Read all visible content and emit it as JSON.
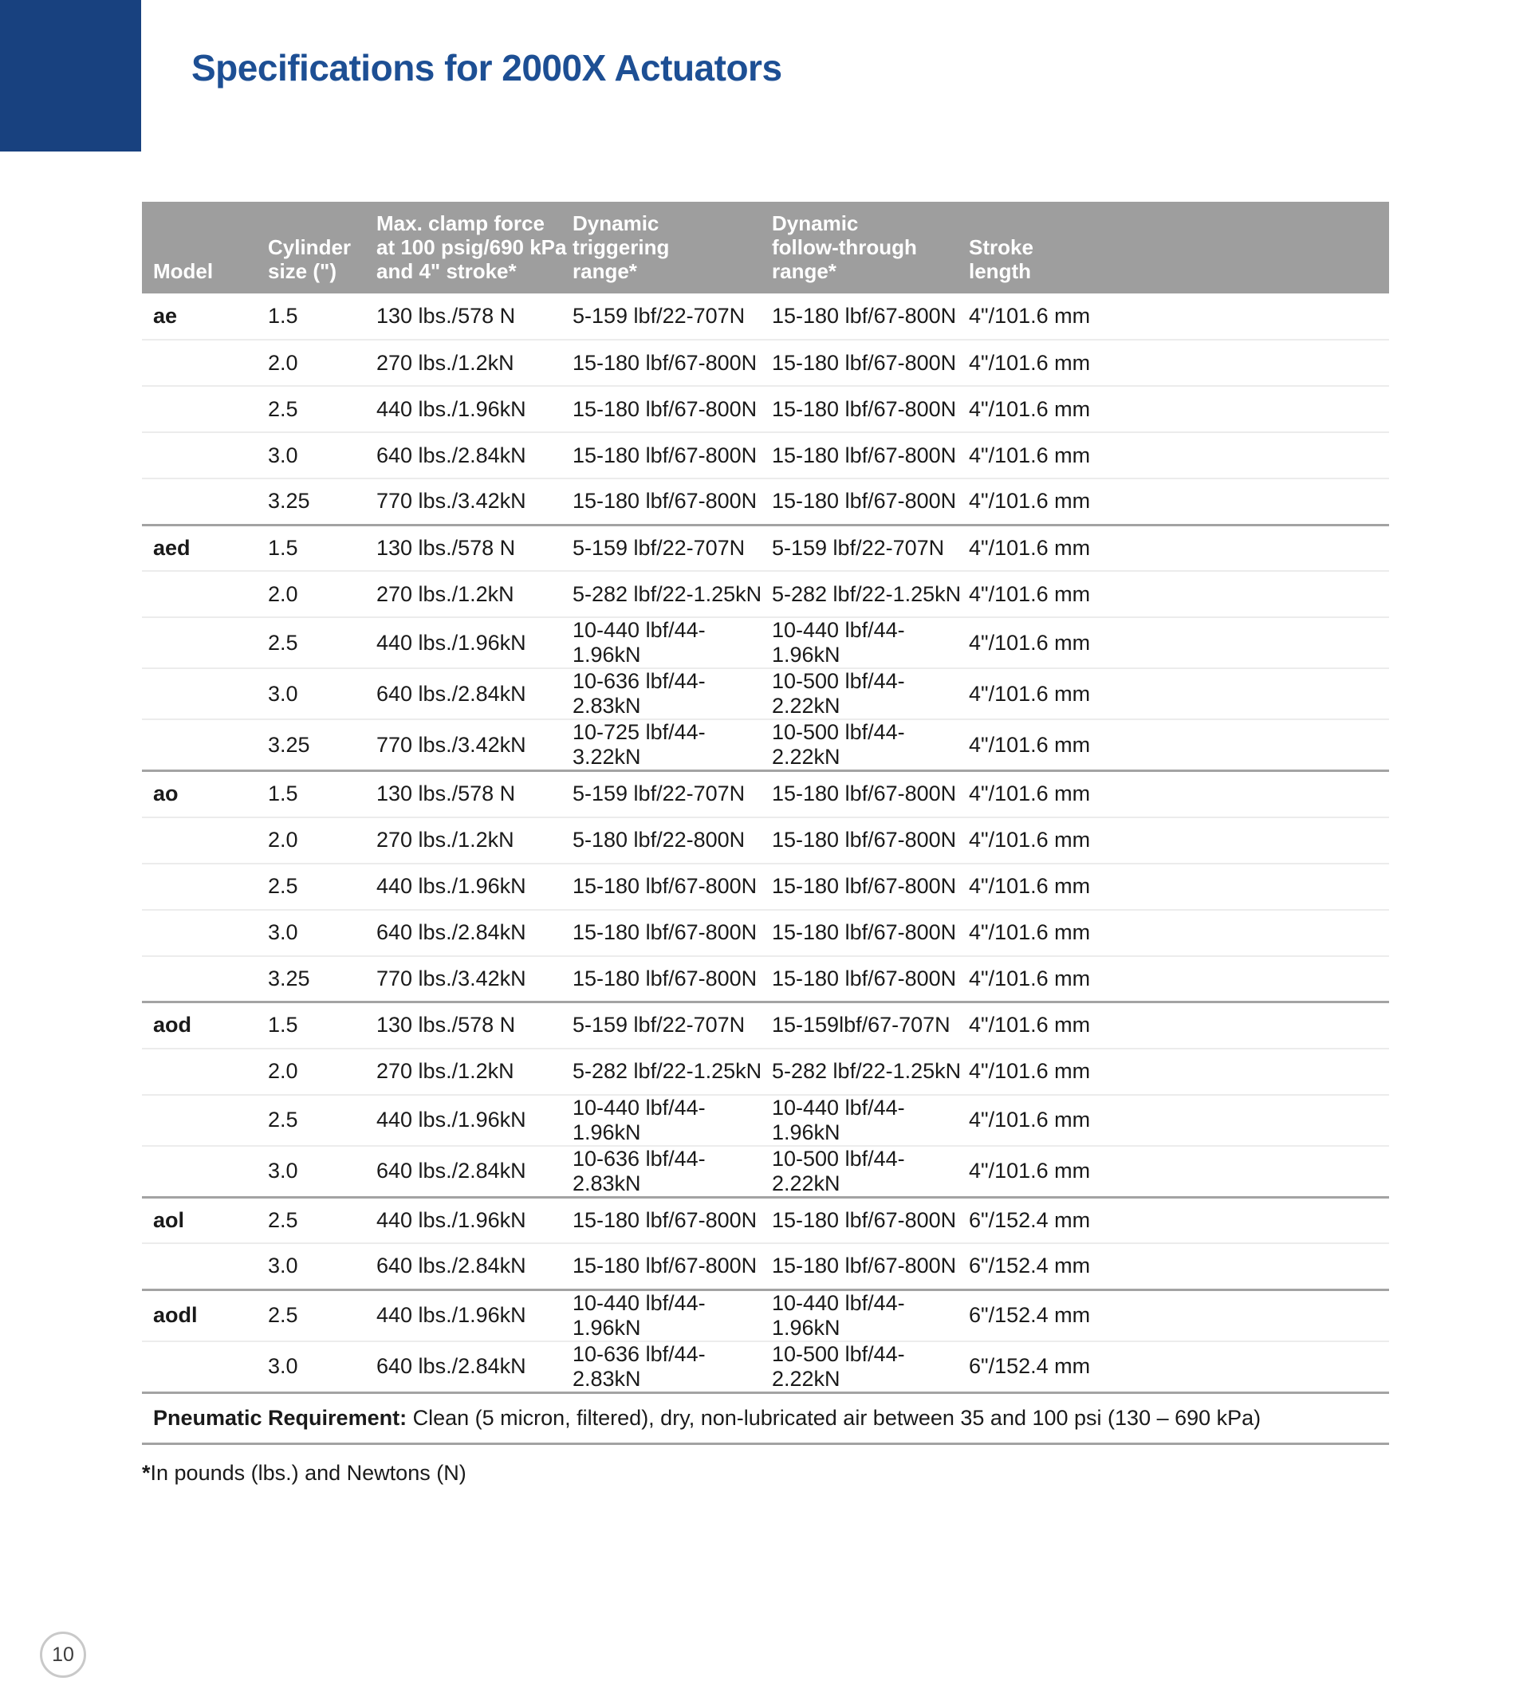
{
  "colors": {
    "accent_blue": "#18417f",
    "title_blue": "#1d4f94",
    "header_gray": "#9e9e9e",
    "sep_thick": "#a3a3a3",
    "sep_thin": "#ececec",
    "body_text": "#1a1a1a",
    "circle_gray": "#c9c9c9"
  },
  "page": {
    "title": "Specifications for 2000X Actuators",
    "page_number": "10",
    "footnote_star": "*",
    "footnote_text": "In pounds (lbs.) and Newtons (N)"
  },
  "table": {
    "headers": {
      "model": "Model",
      "cylinder": "Cylinder\nsize (\")",
      "clamp": "Max. clamp force\nat 100 psig/690 kPa\nand 4\" stroke*",
      "triggering": "Dynamic\ntriggering\nrange*",
      "follow": "Dynamic\nfollow-through\nrange*",
      "stroke": "Stroke\nlength"
    },
    "groups": [
      {
        "model": "ae",
        "rows": [
          [
            "1.5",
            "130 lbs./578 N",
            "5-159 lbf/22-707N",
            "15-180 lbf/67-800N",
            "4\"/101.6 mm"
          ],
          [
            "2.0",
            "270 lbs./1.2kN",
            "15-180 lbf/67-800N",
            "15-180 lbf/67-800N",
            "4\"/101.6 mm"
          ],
          [
            "2.5",
            "440 lbs./1.96kN",
            "15-180 lbf/67-800N",
            "15-180 lbf/67-800N",
            "4\"/101.6 mm"
          ],
          [
            "3.0",
            "640 lbs./2.84kN",
            "15-180 lbf/67-800N",
            "15-180 lbf/67-800N",
            "4\"/101.6 mm"
          ],
          [
            "3.25",
            "770 lbs./3.42kN",
            "15-180 lbf/67-800N",
            "15-180 lbf/67-800N",
            "4\"/101.6 mm"
          ]
        ]
      },
      {
        "model": "aed",
        "rows": [
          [
            "1.5",
            "130 lbs./578 N",
            "5-159 lbf/22-707N",
            "5-159 lbf/22-707N",
            "4\"/101.6 mm"
          ],
          [
            "2.0",
            "270 lbs./1.2kN",
            "5-282 lbf/22-1.25kN",
            "5-282 lbf/22-1.25kN",
            "4\"/101.6 mm"
          ],
          [
            "2.5",
            "440 lbs./1.96kN",
            "10-440 lbf/44-1.96kN",
            "10-440 lbf/44-1.96kN",
            "4\"/101.6 mm"
          ],
          [
            "3.0",
            "640 lbs./2.84kN",
            "10-636 lbf/44-2.83kN",
            "10-500 lbf/44-2.22kN",
            "4\"/101.6 mm"
          ],
          [
            "3.25",
            "770 lbs./3.42kN",
            "10-725 lbf/44-3.22kN",
            "10-500 lbf/44-2.22kN",
            "4\"/101.6 mm"
          ]
        ]
      },
      {
        "model": "ao",
        "rows": [
          [
            "1.5",
            "130 lbs./578 N",
            "5-159 lbf/22-707N",
            "15-180 lbf/67-800N",
            "4\"/101.6 mm"
          ],
          [
            "2.0",
            "270 lbs./1.2kN",
            "5-180 lbf/22-800N",
            "15-180 lbf/67-800N",
            "4\"/101.6 mm"
          ],
          [
            "2.5",
            "440 lbs./1.96kN",
            "15-180 lbf/67-800N",
            "15-180 lbf/67-800N",
            "4\"/101.6 mm"
          ],
          [
            "3.0",
            "640 lbs./2.84kN",
            "15-180 lbf/67-800N",
            "15-180 lbf/67-800N",
            "4\"/101.6 mm"
          ],
          [
            "3.25",
            "770 lbs./3.42kN",
            "15-180 lbf/67-800N",
            "15-180 lbf/67-800N",
            "4\"/101.6 mm"
          ]
        ]
      },
      {
        "model": "aod",
        "rows": [
          [
            "1.5",
            "130 lbs./578 N",
            "5-159 lbf/22-707N",
            "15-159lbf/67-707N",
            "4\"/101.6 mm"
          ],
          [
            "2.0",
            "270 lbs./1.2kN",
            "5-282 lbf/22-1.25kN",
            "5-282 lbf/22-1.25kN",
            "4\"/101.6 mm"
          ],
          [
            "2.5",
            "440 lbs./1.96kN",
            "10-440 lbf/44-1.96kN",
            "10-440 lbf/44-1.96kN",
            "4\"/101.6 mm"
          ],
          [
            "3.0",
            "640 lbs./2.84kN",
            "10-636 lbf/44-2.83kN",
            "10-500 lbf/44-2.22kN",
            "4\"/101.6 mm"
          ]
        ]
      },
      {
        "model": "aol",
        "rows": [
          [
            "2.5",
            "440 lbs./1.96kN",
            "15-180 lbf/67-800N",
            "15-180 lbf/67-800N",
            "6\"/152.4 mm"
          ],
          [
            "3.0",
            "640 lbs./2.84kN",
            "15-180 lbf/67-800N",
            "15-180 lbf/67-800N",
            "6\"/152.4 mm"
          ]
        ]
      },
      {
        "model": "aodl",
        "rows": [
          [
            "2.5",
            "440 lbs./1.96kN",
            "10-440 lbf/44-1.96kN",
            "10-440 lbf/44-1.96kN",
            "6\"/152.4 mm"
          ],
          [
            "3.0",
            "640 lbs./2.84kN",
            "10-636 lbf/44-2.83kN",
            "10-500 lbf/44-2.22kN",
            "6\"/152.4 mm"
          ]
        ]
      }
    ],
    "pneumatic_label": "Pneumatic Requirement:",
    "pneumatic_text": " Clean (5 micron, filtered), dry, non-lubricated air between 35 and 100 psi (130 – 690 kPa)"
  }
}
